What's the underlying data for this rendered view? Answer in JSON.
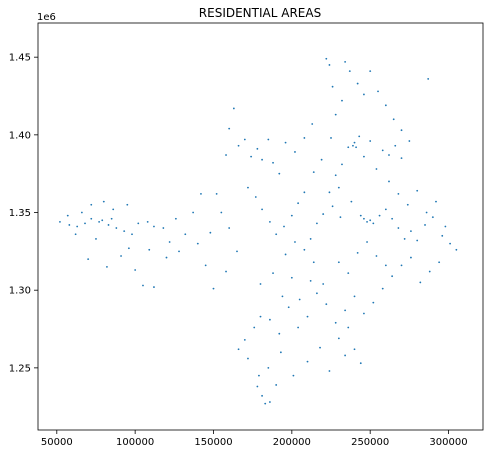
{
  "chart_data": {
    "type": "scatter",
    "title": "RESIDENTIAL AREAS",
    "xlabel": "",
    "ylabel": "",
    "y_offset_label": "1e6",
    "xlim": [
      38000,
      322000
    ],
    "ylim": [
      1210000,
      1472000
    ],
    "x_ticks": [
      50000,
      100000,
      150000,
      200000,
      250000,
      300000
    ],
    "x_tick_labels": [
      "50000",
      "100000",
      "150000",
      "200000",
      "250000",
      "300000"
    ],
    "y_ticks": [
      1250000,
      1300000,
      1350000,
      1400000,
      1450000
    ],
    "y_tick_labels": [
      "1.25",
      "1.30",
      "1.35",
      "1.40",
      "1.45"
    ],
    "grid": false,
    "legend": "none",
    "marker_color": "#1f77b4",
    "series": [
      {
        "points": [
          [
            52000,
            1344000
          ],
          [
            58000,
            1342000
          ],
          [
            63000,
            1341000
          ],
          [
            68000,
            1343000
          ],
          [
            72000,
            1346000
          ],
          [
            77000,
            1344000
          ],
          [
            79000,
            1345000
          ],
          [
            83000,
            1342000
          ],
          [
            88000,
            1340000
          ],
          [
            93000,
            1338000
          ],
          [
            98000,
            1336000
          ],
          [
            102000,
            1343000
          ],
          [
            108000,
            1344000
          ],
          [
            112000,
            1341000
          ],
          [
            118000,
            1340000
          ],
          [
            66000,
            1350000
          ],
          [
            72000,
            1355000
          ],
          [
            80000,
            1357000
          ],
          [
            86000,
            1352000
          ],
          [
            75000,
            1333000
          ],
          [
            70000,
            1320000
          ],
          [
            82000,
            1315000
          ],
          [
            96000,
            1327000
          ],
          [
            100000,
            1313000
          ],
          [
            105000,
            1303000
          ],
          [
            112000,
            1302000
          ],
          [
            120000,
            1321000
          ],
          [
            128000,
            1325000
          ],
          [
            132000,
            1336000
          ],
          [
            140000,
            1330000
          ],
          [
            148000,
            1337000
          ],
          [
            152000,
            1362000
          ],
          [
            155000,
            1350000
          ],
          [
            158000,
            1387000
          ],
          [
            160000,
            1404000
          ],
          [
            163000,
            1417000
          ],
          [
            166000,
            1393000
          ],
          [
            170000,
            1397000
          ],
          [
            174000,
            1386000
          ],
          [
            178000,
            1391000
          ],
          [
            181000,
            1384000
          ],
          [
            185000,
            1397000
          ],
          [
            188000,
            1382000
          ],
          [
            192000,
            1375000
          ],
          [
            172000,
            1366000
          ],
          [
            177000,
            1360000
          ],
          [
            181000,
            1352000
          ],
          [
            186000,
            1344000
          ],
          [
            190000,
            1336000
          ],
          [
            195000,
            1341000
          ],
          [
            200000,
            1348000
          ],
          [
            204000,
            1356000
          ],
          [
            208000,
            1363000
          ],
          [
            212000,
            1333000
          ],
          [
            216000,
            1343000
          ],
          [
            220000,
            1349000
          ],
          [
            224000,
            1363000
          ],
          [
            228000,
            1374000
          ],
          [
            232000,
            1381000
          ],
          [
            236000,
            1392000
          ],
          [
            239000,
            1393000
          ],
          [
            240000,
            1395000
          ],
          [
            241000,
            1392000
          ],
          [
            243000,
            1399000
          ],
          [
            246000,
            1386000
          ],
          [
            250000,
            1396000
          ],
          [
            254000,
            1378000
          ],
          [
            258000,
            1390000
          ],
          [
            262000,
            1387000
          ],
          [
            266000,
            1393000
          ],
          [
            270000,
            1385000
          ],
          [
            244000,
            1348000
          ],
          [
            246000,
            1346000
          ],
          [
            248000,
            1344000
          ],
          [
            250000,
            1345000
          ],
          [
            252000,
            1343000
          ],
          [
            256000,
            1348000
          ],
          [
            260000,
            1352000
          ],
          [
            264000,
            1346000
          ],
          [
            268000,
            1340000
          ],
          [
            272000,
            1333000
          ],
          [
            276000,
            1338000
          ],
          [
            280000,
            1332000
          ],
          [
            285000,
            1342000
          ],
          [
            290000,
            1347000
          ],
          [
            296000,
            1335000
          ],
          [
            301000,
            1330000
          ],
          [
            305000,
            1326000
          ],
          [
            294000,
            1318000
          ],
          [
            288000,
            1312000
          ],
          [
            282000,
            1305000
          ],
          [
            276000,
            1321000
          ],
          [
            270000,
            1316000
          ],
          [
            264000,
            1309000
          ],
          [
            258000,
            1301000
          ],
          [
            252000,
            1292000
          ],
          [
            246000,
            1285000
          ],
          [
            240000,
            1296000
          ],
          [
            234000,
            1287000
          ],
          [
            228000,
            1279000
          ],
          [
            222000,
            1291000
          ],
          [
            216000,
            1298000
          ],
          [
            210000,
            1283000
          ],
          [
            204000,
            1276000
          ],
          [
            198000,
            1289000
          ],
          [
            192000,
            1272000
          ],
          [
            186000,
            1281000
          ],
          [
            180000,
            1283000
          ],
          [
            176000,
            1276000
          ],
          [
            170000,
            1268000
          ],
          [
            166000,
            1262000
          ],
          [
            172000,
            1256000
          ],
          [
            178000,
            1238000
          ],
          [
            181000,
            1232000
          ],
          [
            183000,
            1227000
          ],
          [
            179000,
            1245000
          ],
          [
            185000,
            1250000
          ],
          [
            193000,
            1260000
          ],
          [
            201000,
            1245000
          ],
          [
            210000,
            1254000
          ],
          [
            218000,
            1263000
          ],
          [
            224000,
            1248000
          ],
          [
            230000,
            1269000
          ],
          [
            236000,
            1276000
          ],
          [
            220000,
            1304000
          ],
          [
            214000,
            1318000
          ],
          [
            208000,
            1326000
          ],
          [
            202000,
            1331000
          ],
          [
            196000,
            1323000
          ],
          [
            230000,
            1318000
          ],
          [
            236000,
            1311000
          ],
          [
            242000,
            1324000
          ],
          [
            248000,
            1331000
          ],
          [
            254000,
            1322000
          ],
          [
            260000,
            1316000
          ],
          [
            222000,
            1449000
          ],
          [
            224000,
            1445000
          ],
          [
            226000,
            1431000
          ],
          [
            228000,
            1413000
          ],
          [
            232000,
            1422000
          ],
          [
            234000,
            1447000
          ],
          [
            237000,
            1441000
          ],
          [
            242000,
            1433000
          ],
          [
            246000,
            1426000
          ],
          [
            250000,
            1441000
          ],
          [
            255000,
            1428000
          ],
          [
            260000,
            1419000
          ],
          [
            265000,
            1410000
          ],
          [
            270000,
            1403000
          ],
          [
            275000,
            1396000
          ],
          [
            287000,
            1436000
          ],
          [
            213000,
            1407000
          ],
          [
            208000,
            1398000
          ],
          [
            202000,
            1389000
          ],
          [
            196000,
            1395000
          ],
          [
            225000,
            1398000
          ],
          [
            219000,
            1384000
          ],
          [
            214000,
            1376000
          ],
          [
            230000,
            1366000
          ],
          [
            238000,
            1357000
          ],
          [
            226000,
            1354000
          ],
          [
            231000,
            1347000
          ],
          [
            262000,
            1370000
          ],
          [
            268000,
            1362000
          ],
          [
            274000,
            1355000
          ],
          [
            280000,
            1364000
          ],
          [
            286000,
            1350000
          ],
          [
            292000,
            1357000
          ],
          [
            298000,
            1341000
          ],
          [
            142000,
            1362000
          ],
          [
            137000,
            1350000
          ],
          [
            122000,
            1331000
          ],
          [
            109000,
            1326000
          ],
          [
            91000,
            1322000
          ],
          [
            62000,
            1336000
          ],
          [
            57000,
            1348000
          ],
          [
            85000,
            1346000
          ],
          [
            95000,
            1355000
          ],
          [
            126000,
            1346000
          ],
          [
            160000,
            1340000
          ],
          [
            165000,
            1325000
          ],
          [
            158000,
            1312000
          ],
          [
            150000,
            1301000
          ],
          [
            145000,
            1316000
          ],
          [
            180000,
            1304000
          ],
          [
            188000,
            1311000
          ],
          [
            194000,
            1296000
          ],
          [
            200000,
            1308000
          ],
          [
            205000,
            1294000
          ],
          [
            212000,
            1306000
          ],
          [
            240000,
            1262000
          ],
          [
            244000,
            1253000
          ],
          [
            234000,
            1258000
          ],
          [
            186000,
            1228000
          ],
          [
            190000,
            1239000
          ]
        ]
      }
    ]
  }
}
